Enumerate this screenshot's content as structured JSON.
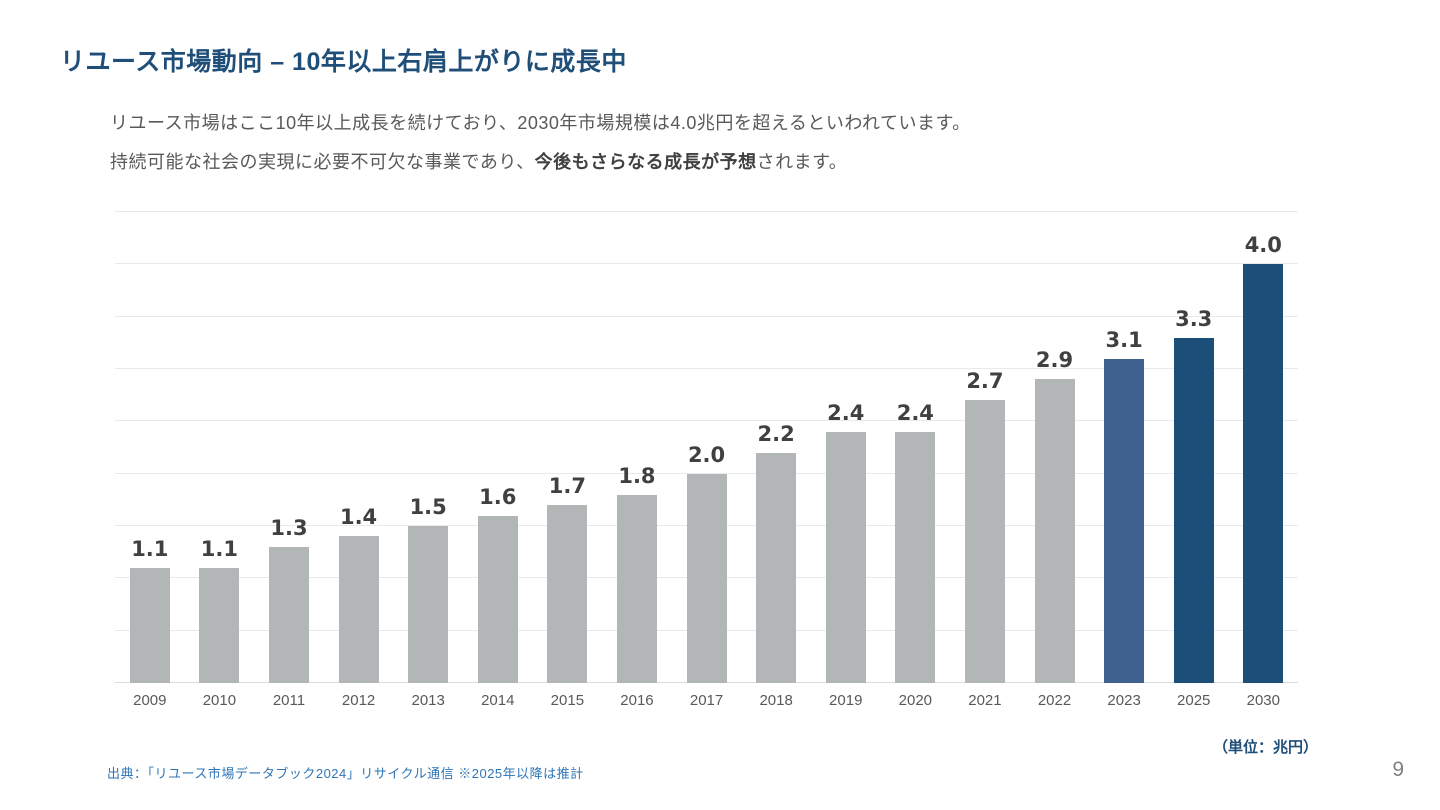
{
  "slide": {
    "title": "リユース市場動向 – 10年以上右肩上がりに成長中",
    "body_line1": "リユース市場はここ10年以上成長を続けており、2030年市場規模は4.0兆円を超えるといわれています。",
    "body_line2_pre": "持続可能な社会の実現に必要不可欠な事業であり、",
    "body_line2_bold": "今後もさらなる成長が予想",
    "body_line2_post": "されます。",
    "unit_note": "（単位：兆円）",
    "source": "出典：「リユース市場データブック2024」リサイクル通信 ※2025年以降は推計",
    "page_number": "9"
  },
  "colors": {
    "title_text": "#1F4E79",
    "bar_gray": "#B3B6B7",
    "bar_mid": "#3F618F",
    "bar_dark": "#1B4E79",
    "grid": "#E8EAEC",
    "value_label": "#404040",
    "axis_label": "#595959",
    "source_text": "#2E75B6",
    "unit_text": "#1F4E79"
  },
  "chart_data": {
    "type": "bar",
    "title": "",
    "xlabel": "",
    "ylabel": "",
    "unit": "兆円",
    "legend": "none",
    "grid": true,
    "grid_step": 0.5,
    "ylim": [
      0,
      4.5
    ],
    "categories": [
      "2009",
      "2010",
      "2011",
      "2012",
      "2013",
      "2014",
      "2015",
      "2016",
      "2017",
      "2018",
      "2019",
      "2020",
      "2021",
      "2022",
      "2023",
      "2025",
      "2030"
    ],
    "values": [
      1.1,
      1.1,
      1.3,
      1.4,
      1.5,
      1.6,
      1.7,
      1.8,
      2.0,
      2.2,
      2.4,
      2.4,
      2.7,
      2.9,
      3.1,
      3.3,
      4.0
    ],
    "bar_color_keys": [
      "gray",
      "gray",
      "gray",
      "gray",
      "gray",
      "gray",
      "gray",
      "gray",
      "gray",
      "gray",
      "gray",
      "gray",
      "gray",
      "gray",
      "mid",
      "dark",
      "dark"
    ]
  }
}
